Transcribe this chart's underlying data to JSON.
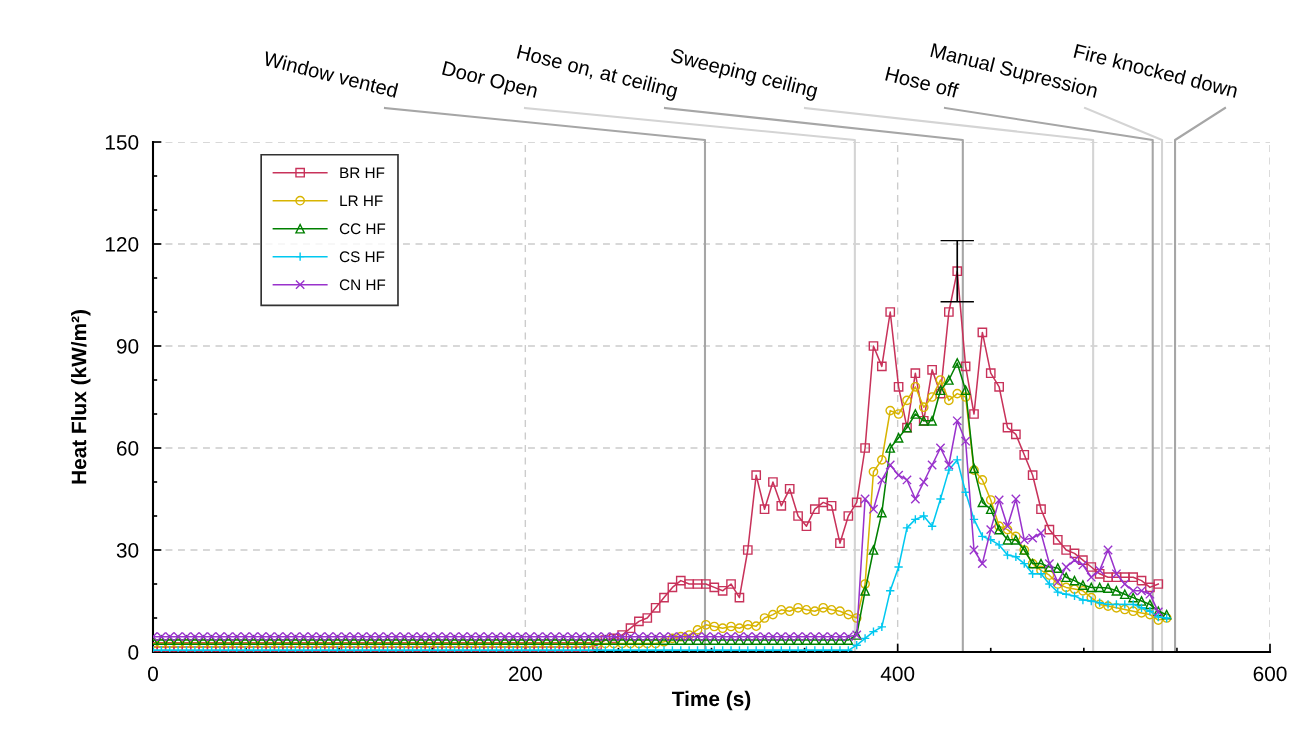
{
  "chart_data": {
    "type": "line",
    "xlabel": "Time (s)",
    "ylabel": "Heat Flux (kW/m²)",
    "xlim": [
      0,
      600
    ],
    "ylim": [
      0,
      150
    ],
    "xticks": [
      0,
      200,
      400,
      600,
      {
        "value": 50,
        "label": null
      },
      {
        "value": 100,
        "label": null
      },
      {
        "value": 150,
        "label": null
      },
      {
        "value": 250,
        "label": null
      },
      {
        "value": 300,
        "label": null
      },
      {
        "value": 350,
        "label": null
      },
      {
        "value": 450,
        "label": null
      },
      {
        "value": 500,
        "label": null
      },
      {
        "value": 550,
        "label": null
      }
    ],
    "yticks": [
      0,
      30,
      60,
      90,
      120,
      150,
      {
        "value": 10,
        "label": null
      },
      {
        "value": 20,
        "label": null
      },
      {
        "value": 40,
        "label": null
      },
      {
        "value": 50,
        "label": null
      },
      {
        "value": 70,
        "label": null
      },
      {
        "value": 80,
        "label": null
      },
      {
        "value": 100,
        "label": null
      },
      {
        "value": 110,
        "label": null
      },
      {
        "value": 130,
        "label": null
      },
      {
        "value": 140,
        "label": null
      }
    ],
    "grid": true,
    "legend": "top left",
    "line_style": "solid",
    "x": [
      0,
      4.5,
      9,
      13.5,
      18,
      22.5,
      27,
      31.5,
      36,
      40.5,
      45,
      49.5,
      54,
      58.5,
      63,
      67.5,
      72,
      76.5,
      81,
      85.5,
      90,
      94.5,
      99,
      103.5,
      108,
      112.5,
      117,
      121.5,
      126,
      130.5,
      135,
      139.5,
      144,
      148.5,
      153,
      157.5,
      162,
      166.5,
      171,
      175.5,
      180,
      184.5,
      189,
      193.5,
      198,
      202.5,
      207,
      211.5,
      216,
      220.5,
      225,
      229.5,
      234,
      238.5,
      243,
      247.5,
      252,
      256.5,
      261,
      265.5,
      270,
      274.5,
      279,
      283.5,
      288,
      292.5,
      297,
      301.5,
      306,
      310.5,
      315,
      319.5,
      324,
      328.5,
      333,
      337.5,
      342,
      346.5,
      351,
      355.5,
      360,
      364.5,
      369,
      373.5,
      378,
      382.5,
      387,
      391.5,
      396,
      400.5,
      405,
      409.5,
      414,
      418.5,
      423,
      427.5,
      432,
      436.5,
      441,
      445.5,
      450,
      454.5,
      459,
      463.5,
      468,
      472.5,
      477,
      481.5,
      486,
      490.5,
      495,
      499.5,
      504,
      508.5,
      513,
      517.5,
      522,
      526.5,
      531,
      535.5,
      540,
      544.5
    ],
    "series": [
      {
        "name": "BR HF",
        "color": "#c8325a",
        "marker": "square",
        "values": [
          1.5,
          1.5,
          1.5,
          1.5,
          1.5,
          1.5,
          1.5,
          1.5,
          1.5,
          1.5,
          1.5,
          1.5,
          1.5,
          1.5,
          1.5,
          1.5,
          1.5,
          1.5,
          1.5,
          1.5,
          1.5,
          1.5,
          1.5,
          1.5,
          1.5,
          1.5,
          1.5,
          1.5,
          1.5,
          1.5,
          1.5,
          1.5,
          1.5,
          1.5,
          1.5,
          1.5,
          1.5,
          1.5,
          1.5,
          1.5,
          1.5,
          1.5,
          1.5,
          1.5,
          1.5,
          1.5,
          1.5,
          1.5,
          1.5,
          1.5,
          1.5,
          1.5,
          1.5,
          2,
          3.5,
          4,
          5,
          7,
          9,
          10,
          13,
          16,
          19,
          21,
          20,
          20,
          20,
          19,
          18,
          20,
          16,
          30,
          52,
          42,
          50,
          43,
          48,
          40,
          37,
          42,
          44,
          43,
          32,
          40,
          44,
          60,
          90,
          84,
          100,
          78,
          66,
          82,
          68,
          83,
          76,
          100,
          112,
          84,
          70,
          94,
          82,
          78,
          66,
          64,
          58,
          52,
          42,
          36,
          33,
          30,
          29,
          27,
          25,
          23,
          22,
          22,
          22,
          22,
          21,
          19,
          20,
          null
        ],
        "errors": [
          null,
          null,
          null,
          null,
          null,
          null,
          null,
          null,
          null,
          null,
          null,
          null,
          null,
          null,
          null,
          null,
          null,
          null,
          null,
          null,
          null,
          null,
          null,
          null,
          null,
          null,
          null,
          null,
          null,
          null,
          null,
          null,
          null,
          null,
          null,
          null,
          null,
          null,
          null,
          null,
          null,
          null,
          null,
          null,
          null,
          null,
          null,
          null,
          null,
          null,
          null,
          null,
          null,
          null,
          null,
          null,
          null,
          null,
          null,
          null,
          null,
          null,
          null,
          null,
          null,
          null,
          null,
          null,
          null,
          null,
          null,
          null,
          null,
          null,
          null,
          null,
          null,
          null,
          null,
          null,
          null,
          null,
          null,
          null,
          null,
          null,
          null,
          null,
          null,
          null,
          null,
          null,
          null,
          null,
          null,
          null,
          9,
          null,
          null,
          null,
          null,
          null,
          null,
          null,
          null,
          null,
          null,
          null,
          null,
          null,
          null,
          null,
          null,
          null,
          null,
          null,
          null,
          null,
          null,
          null,
          null,
          null
        ]
      },
      {
        "name": "LR HF",
        "color": "#d8b400",
        "marker": "circle",
        "values": [
          2.5,
          2.5,
          2.5,
          2.5,
          2.5,
          2.5,
          2.5,
          2.5,
          2.5,
          2.5,
          2.5,
          2.5,
          2.5,
          2.5,
          2.5,
          2.5,
          2.5,
          2.5,
          2.5,
          2.5,
          2.5,
          2.5,
          2.5,
          2.5,
          2.5,
          2.5,
          2.5,
          2.5,
          2.5,
          2.5,
          2.5,
          2.5,
          2.5,
          2.5,
          2.5,
          2.5,
          2.5,
          2.5,
          2.5,
          2.5,
          2.5,
          2.5,
          2.5,
          2.5,
          2.5,
          2.5,
          2.5,
          2.5,
          2.5,
          2.5,
          2.5,
          2.5,
          2.5,
          2.5,
          2.5,
          2.5,
          2.5,
          2.5,
          2.5,
          2.5,
          2.5,
          3,
          4,
          4.5,
          5,
          6.5,
          8,
          7.5,
          7,
          7.5,
          7,
          8,
          7.6,
          10,
          11,
          12.4,
          12,
          13,
          12.4,
          12,
          13,
          12.4,
          12,
          11,
          10,
          20,
          53,
          56.5,
          71,
          70,
          74,
          78,
          72,
          75,
          80,
          74,
          76,
          75,
          53.5,
          50.6,
          44.7,
          37,
          36,
          34,
          30,
          26,
          24,
          22.6,
          20,
          19,
          18.5,
          18,
          16,
          14,
          13.5,
          13,
          12.5,
          12,
          11.5,
          11,
          9.4,
          10
        ]
      },
      {
        "name": "CC HF",
        "color": "#008000",
        "marker": "triangle",
        "values": [
          3.5,
          3.5,
          3.5,
          3.5,
          3.5,
          3.5,
          3.5,
          3.5,
          3.5,
          3.5,
          3.5,
          3.5,
          3.5,
          3.5,
          3.5,
          3.5,
          3.5,
          3.5,
          3.5,
          3.5,
          3.5,
          3.5,
          3.5,
          3.5,
          3.5,
          3.5,
          3.5,
          3.5,
          3.5,
          3.5,
          3.5,
          3.5,
          3.5,
          3.5,
          3.5,
          3.5,
          3.5,
          3.5,
          3.5,
          3.5,
          3.5,
          3.5,
          3.5,
          3.5,
          3.5,
          3.5,
          3.5,
          3.5,
          3.5,
          3.5,
          3.5,
          3.5,
          3.5,
          3.5,
          3.5,
          3.5,
          3.5,
          3.5,
          3.5,
          3.5,
          3.5,
          3.5,
          3.5,
          3.5,
          3.5,
          3.5,
          3.5,
          3.5,
          3.5,
          3.5,
          3.5,
          3.5,
          3.5,
          3.5,
          3.5,
          3.5,
          3.5,
          3.5,
          3.5,
          3.5,
          3.5,
          3.5,
          3.5,
          3.5,
          5,
          18,
          30,
          41,
          60,
          63,
          66,
          70,
          68,
          68,
          77,
          80,
          85,
          77,
          54,
          44,
          42,
          36,
          33,
          33,
          30,
          26,
          26,
          25,
          24.7,
          22,
          21,
          19.7,
          19,
          19,
          18.8,
          18,
          17,
          16,
          15,
          14,
          12,
          11
        ]
      },
      {
        "name": "CS HF",
        "color": "#00c8f0",
        "marker": "plus",
        "values": [
          0.5,
          0.5,
          0.5,
          0.5,
          0.5,
          0.5,
          0.5,
          0.5,
          0.5,
          0.5,
          0.5,
          0.5,
          0.5,
          0.5,
          0.5,
          0.5,
          0.5,
          0.5,
          0.5,
          0.5,
          0.5,
          0.5,
          0.5,
          0.5,
          0.5,
          0.5,
          0.5,
          0.5,
          0.5,
          0.5,
          0.5,
          0.5,
          0.5,
          0.5,
          0.5,
          0.5,
          0.5,
          0.5,
          0.5,
          0.5,
          0.5,
          0.5,
          0.5,
          0.5,
          0.5,
          0.5,
          0.5,
          0.5,
          0.5,
          0.5,
          0.5,
          0.5,
          0.5,
          0.5,
          0.5,
          0.5,
          0.5,
          0.5,
          0.5,
          0.5,
          0.5,
          0.5,
          0.5,
          0.5,
          0.5,
          0.5,
          0.5,
          0.5,
          0.5,
          0.5,
          0.5,
          0.5,
          0.5,
          0.5,
          0.5,
          0.5,
          0.5,
          0.5,
          0.5,
          0.5,
          0.5,
          0.5,
          0.5,
          0.5,
          2,
          4,
          6,
          7.4,
          18,
          25,
          36.5,
          39,
          40,
          37,
          45,
          53.5,
          56.5,
          47,
          39,
          34,
          33,
          31.5,
          28.5,
          28,
          26,
          23,
          23,
          20,
          17.6,
          17,
          16.5,
          15.3,
          15,
          14.5,
          14,
          14,
          14,
          14,
          13,
          12,
          10.3,
          10
        ]
      },
      {
        "name": "CN HF",
        "color": "#9932cc",
        "marker": "cross",
        "values": [
          4.5,
          4.5,
          4.5,
          4.5,
          4.5,
          4.5,
          4.5,
          4.5,
          4.5,
          4.5,
          4.5,
          4.5,
          4.5,
          4.5,
          4.5,
          4.5,
          4.5,
          4.5,
          4.5,
          4.5,
          4.5,
          4.5,
          4.5,
          4.5,
          4.5,
          4.5,
          4.5,
          4.5,
          4.5,
          4.5,
          4.5,
          4.5,
          4.5,
          4.5,
          4.5,
          4.5,
          4.5,
          4.5,
          4.5,
          4.5,
          4.5,
          4.5,
          4.5,
          4.5,
          4.5,
          4.5,
          4.5,
          4.5,
          4.5,
          4.5,
          4.5,
          4.5,
          4.5,
          4.5,
          4.5,
          4.5,
          4.5,
          4.5,
          4.5,
          4.5,
          4.5,
          4.5,
          4.5,
          4.5,
          4.5,
          4.5,
          4.5,
          4.5,
          4.5,
          4.5,
          4.5,
          4.5,
          4.5,
          4.5,
          4.5,
          4.5,
          4.5,
          4.5,
          4.5,
          4.5,
          4.5,
          4.5,
          4.5,
          4.5,
          5,
          45,
          42,
          50.6,
          55,
          52,
          50.6,
          45,
          50,
          55,
          60,
          55,
          68,
          62,
          30,
          26,
          36,
          44.7,
          37,
          45,
          33,
          33.5,
          35,
          26,
          20.6,
          25,
          27,
          25.6,
          22,
          24,
          30,
          23,
          20,
          18,
          18,
          17,
          11.8,
          null
        ]
      }
    ],
    "ref_lines": [
      {
        "axis": "x",
        "value": 296.5,
        "label": "Window vented",
        "color": "#a6a6a6"
      },
      {
        "axis": "x",
        "value": 377,
        "label": "Door Open",
        "color": "#d4d4d4"
      },
      {
        "axis": "x",
        "value": 435,
        "label": "Hose on, at ceiling",
        "color": "#a6a6a6"
      },
      {
        "axis": "x",
        "value": 505,
        "label": "Sweeping ceiling",
        "color": "#d4d4d4"
      },
      {
        "axis": "x",
        "value": 537,
        "label": "Hose off",
        "color": "#a6a6a6"
      },
      {
        "axis": "x",
        "value": 542,
        "label": "Manual Supression",
        "color": "#d4d4d4"
      },
      {
        "axis": "x",
        "value": 549,
        "label": "Fire knocked down",
        "color": "#a6a6a6"
      }
    ]
  }
}
